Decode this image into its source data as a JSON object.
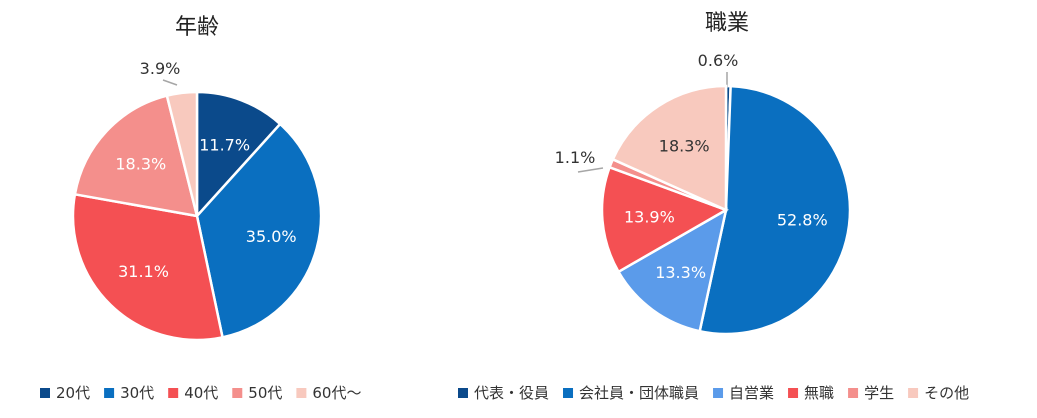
{
  "chart_data": [
    {
      "type": "pie",
      "title": "年齢",
      "categories": [
        "20代",
        "30代",
        "40代",
        "50代",
        "60代～"
      ],
      "values": [
        11.7,
        35.0,
        31.1,
        18.3,
        3.9
      ],
      "labels": [
        "11.7%",
        "35.0%",
        "31.1%",
        "18.3%",
        "3.9%"
      ],
      "colors": [
        "#0B4A8B",
        "#0A6FC0",
        "#F45053",
        "#F48F8C",
        "#F8C9BE"
      ],
      "legend_position": "bottom",
      "start": "12 o'clock, clockwise"
    },
    {
      "type": "pie",
      "title": "職業",
      "categories": [
        "代表・役員",
        "会社員・団体職員",
        "自営業",
        "無職",
        "学生",
        "その他"
      ],
      "values": [
        0.6,
        52.8,
        13.3,
        13.9,
        1.1,
        18.3
      ],
      "labels": [
        "0.6%",
        "52.8%",
        "13.3%",
        "13.9%",
        "1.1%",
        "18.3%"
      ],
      "colors": [
        "#0B4A8B",
        "#0A6FC0",
        "#5B9BEA",
        "#F45053",
        "#F48F8C",
        "#F8C9BE"
      ],
      "legend_position": "bottom",
      "start": "12 o'clock, clockwise"
    }
  ]
}
